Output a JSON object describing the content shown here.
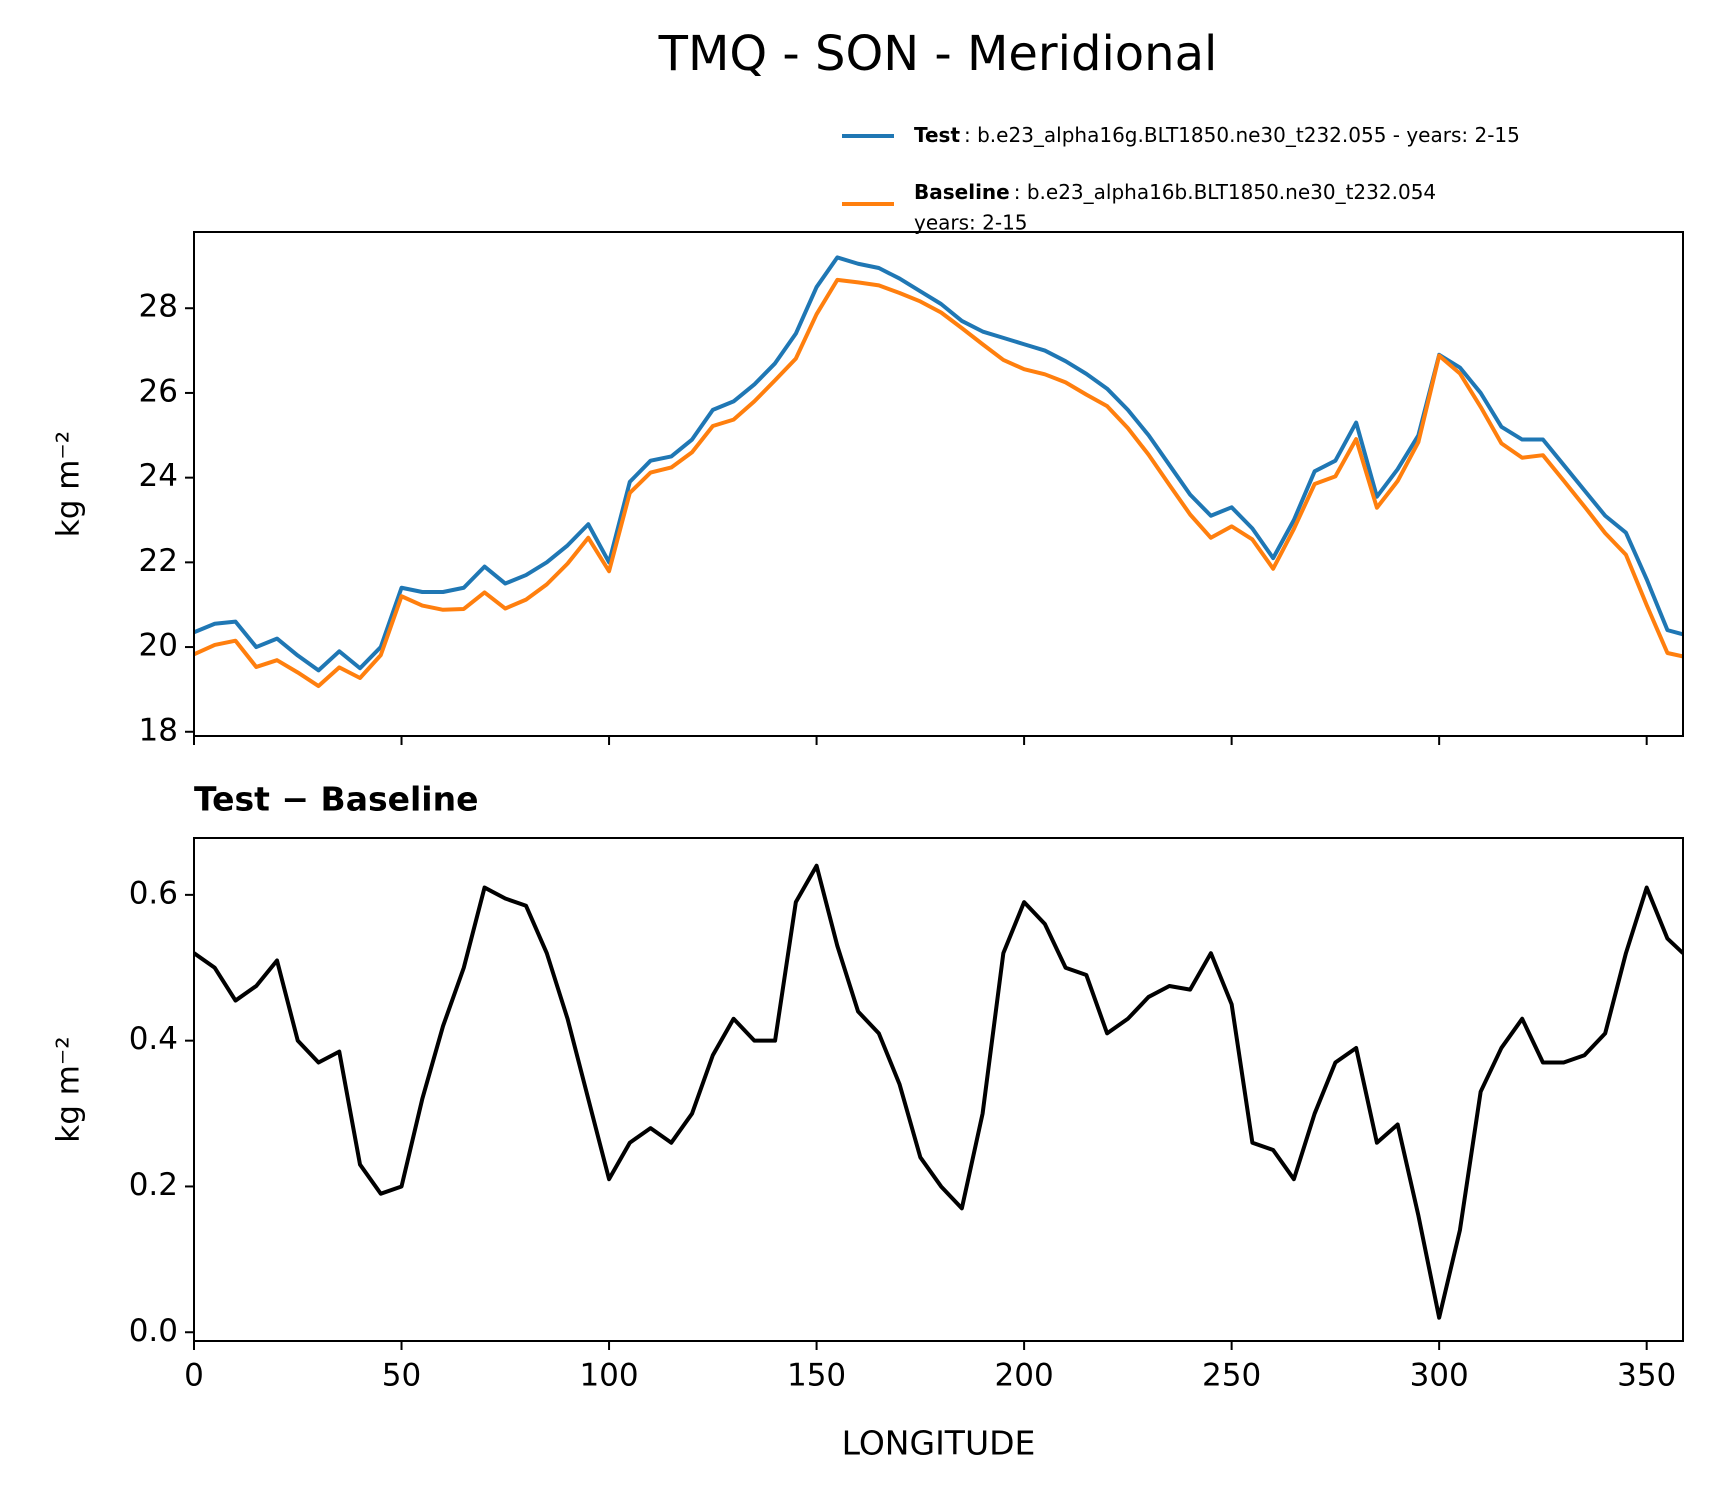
{
  "chart_data": [
    {
      "type": "line",
      "title": "TMQ - SON - Meridional",
      "ylabel": "kg m⁻²",
      "x": [
        0,
        5,
        10,
        15,
        20,
        25,
        30,
        35,
        40,
        45,
        50,
        55,
        60,
        65,
        70,
        75,
        80,
        85,
        90,
        95,
        100,
        105,
        110,
        115,
        120,
        125,
        130,
        135,
        140,
        145,
        150,
        155,
        160,
        165,
        170,
        175,
        180,
        185,
        190,
        195,
        200,
        205,
        210,
        215,
        220,
        225,
        230,
        235,
        240,
        245,
        250,
        255,
        260,
        265,
        270,
        275,
        280,
        285,
        290,
        295,
        300,
        305,
        310,
        315,
        320,
        325,
        330,
        335,
        340,
        345,
        350,
        355,
        358.75
      ],
      "series": [
        {
          "name": "Test",
          "description": [
            ": b.e23_alpha16g.BLT1850.ne30_t232.055 - years: 2-15"
          ],
          "color": "#1f77b4",
          "values": [
            20.35,
            20.55,
            20.6,
            20.0,
            20.2,
            19.8,
            19.45,
            19.9,
            19.5,
            20.0,
            21.4,
            21.3,
            21.3,
            21.4,
            21.9,
            21.5,
            21.7,
            22.0,
            22.4,
            22.9,
            22.0,
            23.9,
            24.4,
            24.5,
            24.9,
            25.6,
            25.8,
            26.2,
            26.7,
            27.4,
            28.5,
            29.2,
            29.05,
            28.95,
            28.7,
            28.4,
            28.1,
            27.7,
            27.45,
            27.3,
            27.15,
            27.0,
            26.75,
            26.45,
            26.1,
            25.6,
            25.0,
            24.3,
            23.6,
            23.1,
            23.3,
            22.8,
            22.1,
            23.0,
            24.15,
            24.4,
            25.3,
            23.55,
            24.2,
            25.0,
            26.9,
            26.6,
            26.0,
            25.2,
            24.9,
            24.9,
            24.3,
            23.7,
            23.1,
            22.7,
            21.6,
            20.4,
            20.3
          ]
        },
        {
          "name": "Baseline",
          "description": [
            ": b.e23_alpha16b.BLT1850.ne30_t232.054",
            "years: 2-15"
          ],
          "color": "#ff7f0e",
          "values": [
            19.83,
            20.05,
            20.15,
            19.53,
            19.69,
            19.4,
            19.08,
            19.52,
            19.27,
            19.81,
            21.2,
            20.98,
            20.88,
            20.9,
            21.29,
            20.91,
            21.12,
            21.48,
            21.97,
            22.58,
            21.79,
            23.64,
            24.12,
            24.24,
            24.6,
            25.22,
            25.37,
            25.8,
            26.3,
            26.81,
            27.86,
            28.67,
            28.61,
            28.54,
            28.36,
            28.16,
            27.9,
            27.53,
            27.15,
            26.78,
            26.56,
            26.44,
            26.25,
            25.96,
            25.69,
            25.17,
            24.54,
            23.83,
            23.13,
            22.58,
            22.85,
            22.54,
            21.85,
            22.79,
            23.85,
            24.03,
            24.91,
            23.29,
            23.92,
            24.84,
            26.88,
            26.46,
            25.67,
            24.81,
            24.47,
            24.53,
            23.93,
            23.32,
            22.69,
            22.18,
            20.99,
            19.86,
            19.78
          ]
        }
      ],
      "xlim": [
        0,
        358.75
      ],
      "xticks": [
        0,
        50,
        100,
        150,
        200,
        250,
        300,
        350
      ],
      "ylim": [
        17.9,
        29.8
      ],
      "yticks": [
        18,
        20,
        22,
        24,
        26,
        28
      ],
      "legend": "upper right"
    },
    {
      "type": "line",
      "subtitle": "Test − Baseline",
      "xlabel": "LONGITUDE",
      "ylabel": "kg m⁻²",
      "x": [
        0,
        5,
        10,
        15,
        20,
        25,
        30,
        35,
        40,
        45,
        50,
        55,
        60,
        65,
        70,
        75,
        80,
        85,
        90,
        95,
        100,
        105,
        110,
        115,
        120,
        125,
        130,
        135,
        140,
        145,
        150,
        155,
        160,
        165,
        170,
        175,
        180,
        185,
        190,
        195,
        200,
        205,
        210,
        215,
        220,
        225,
        230,
        235,
        240,
        245,
        250,
        255,
        260,
        265,
        270,
        275,
        280,
        285,
        290,
        295,
        300,
        305,
        310,
        315,
        320,
        325,
        330,
        335,
        340,
        345,
        350,
        355,
        358.75
      ],
      "series": [
        {
          "color": "#000000",
          "values": [
            0.52,
            0.5,
            0.455,
            0.475,
            0.51,
            0.4,
            0.37,
            0.385,
            0.23,
            0.19,
            0.2,
            0.32,
            0.42,
            0.5,
            0.61,
            0.595,
            0.585,
            0.52,
            0.43,
            0.32,
            0.21,
            0.26,
            0.28,
            0.26,
            0.3,
            0.38,
            0.43,
            0.4,
            0.4,
            0.59,
            0.64,
            0.53,
            0.44,
            0.41,
            0.34,
            0.24,
            0.2,
            0.17,
            0.3,
            0.52,
            0.59,
            0.56,
            0.5,
            0.49,
            0.41,
            0.43,
            0.46,
            0.475,
            0.47,
            0.52,
            0.45,
            0.26,
            0.25,
            0.21,
            0.3,
            0.37,
            0.39,
            0.26,
            0.285,
            0.16,
            0.02,
            0.14,
            0.33,
            0.39,
            0.43,
            0.37,
            0.37,
            0.38,
            0.41,
            0.52,
            0.61,
            0.54,
            0.52
          ]
        }
      ],
      "xlim": [
        0,
        358.75
      ],
      "xticks": [
        0,
        50,
        100,
        150,
        200,
        250,
        300,
        350
      ],
      "ylim": [
        -0.012,
        0.678
      ],
      "yticks": [
        0.0,
        0.2,
        0.4,
        0.6
      ],
      "ytick_labels": [
        "0.0",
        "0.2",
        "0.4",
        "0.6"
      ]
    }
  ]
}
